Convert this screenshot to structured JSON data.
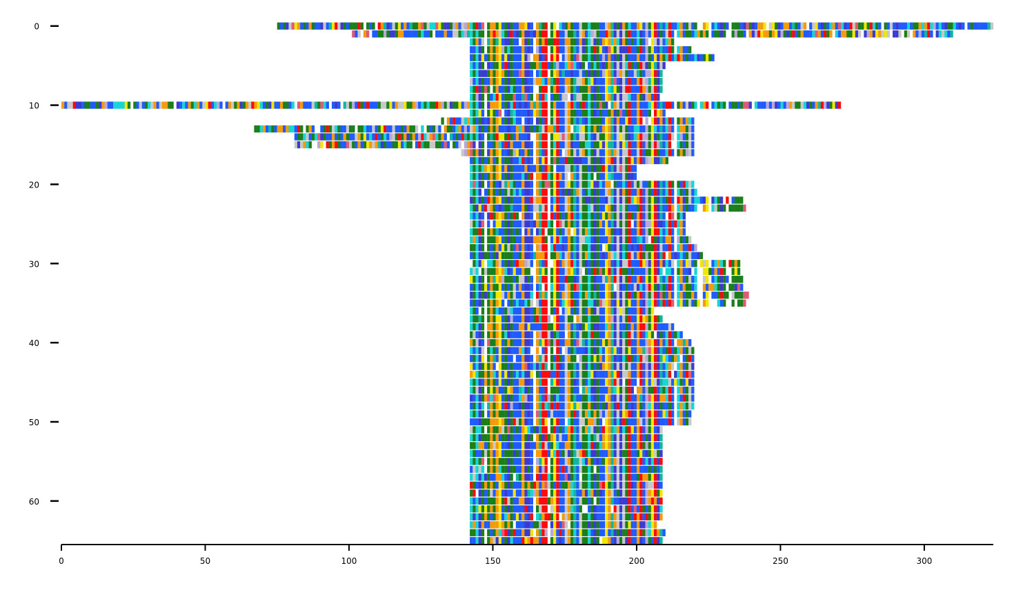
{
  "chart_data": {
    "type": "heatmap",
    "title": "",
    "xlabel": "",
    "ylabel": "",
    "xlim": [
      0,
      324
    ],
    "ylim": [
      65.5,
      -0.5
    ],
    "xticks": [
      0,
      50,
      100,
      150,
      200,
      250,
      300
    ],
    "xtick_labels": [
      "0",
      "50",
      "100",
      "150",
      "200",
      "250",
      "300"
    ],
    "yticks": [
      0,
      10,
      20,
      30,
      40,
      50,
      60
    ],
    "ytick_labels": [
      "0",
      "10",
      "20",
      "30",
      "40",
      "50",
      "60"
    ],
    "n_rows": 66,
    "y_axis_inverted": true,
    "grid": false,
    "legend": "none",
    "palette": {
      "blue": "#1f5bff",
      "navy": "#3b3bd1",
      "green": "#1a7f1a",
      "cyan": "#19d4d4",
      "teal": "#12b5a0",
      "orange": "#f59a0b",
      "yellow": "#f2e600",
      "red": "#ff0a0a",
      "pink": "#e05a73",
      "gray": "#c8c8c8",
      "lavender": "#b8a8d8"
    },
    "row_spans": [
      [
        75,
        324
      ],
      [
        101,
        310
      ],
      [
        142,
        214
      ],
      [
        142,
        219
      ],
      [
        142,
        227
      ],
      [
        142,
        210
      ],
      [
        142,
        209
      ],
      [
        142,
        209
      ],
      [
        142,
        209
      ],
      [
        142,
        208
      ],
      [
        0,
        271
      ],
      [
        142,
        210
      ],
      [
        132,
        220
      ],
      [
        67,
        220
      ],
      [
        81,
        220
      ],
      [
        81,
        220
      ],
      [
        139,
        220
      ],
      [
        142,
        211
      ],
      [
        142,
        200
      ],
      [
        142,
        200
      ],
      [
        142,
        220
      ],
      [
        142,
        221
      ],
      [
        142,
        237
      ],
      [
        142,
        238
      ],
      [
        142,
        217
      ],
      [
        142,
        217
      ],
      [
        142,
        217
      ],
      [
        142,
        219
      ],
      [
        142,
        221
      ],
      [
        142,
        223
      ],
      [
        142,
        236
      ],
      [
        142,
        236
      ],
      [
        142,
        237
      ],
      [
        142,
        237
      ],
      [
        142,
        239
      ],
      [
        142,
        238
      ],
      [
        142,
        206
      ],
      [
        142,
        209
      ],
      [
        142,
        213
      ],
      [
        142,
        216
      ],
      [
        142,
        219
      ],
      [
        142,
        220
      ],
      [
        142,
        220
      ],
      [
        142,
        220
      ],
      [
        142,
        220
      ],
      [
        142,
        220
      ],
      [
        142,
        220
      ],
      [
        142,
        220
      ],
      [
        142,
        220
      ],
      [
        142,
        219
      ],
      [
        142,
        219
      ],
      [
        142,
        209
      ],
      [
        142,
        209
      ],
      [
        142,
        209
      ],
      [
        142,
        209
      ],
      [
        142,
        209
      ],
      [
        142,
        209
      ],
      [
        142,
        209
      ],
      [
        142,
        209
      ],
      [
        142,
        209
      ],
      [
        142,
        209
      ],
      [
        142,
        209
      ],
      [
        142,
        209
      ],
      [
        142,
        207
      ],
      [
        142,
        210
      ],
      [
        142,
        209
      ]
    ]
  }
}
